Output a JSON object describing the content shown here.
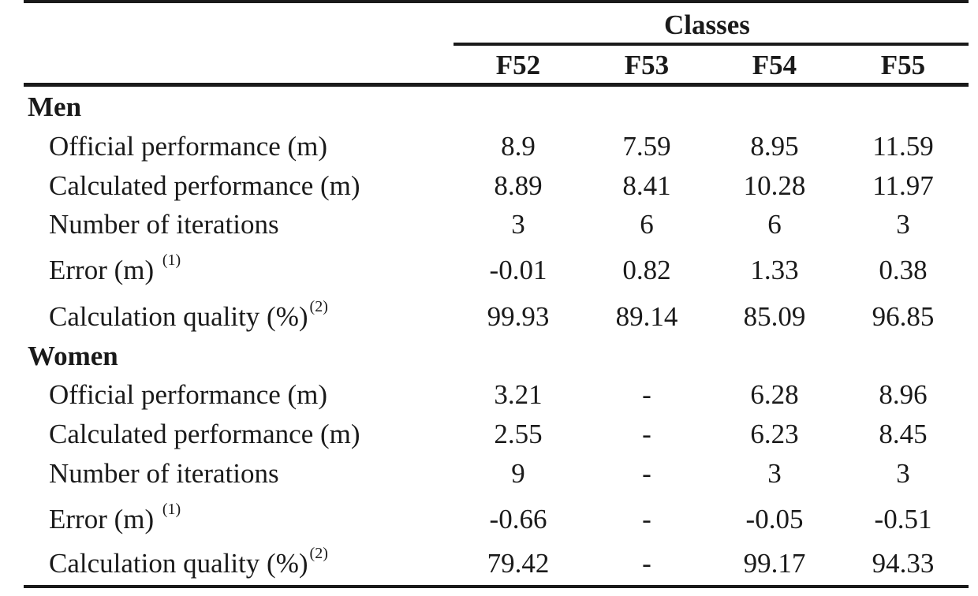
{
  "table": {
    "super_header": "Classes",
    "columns": [
      "F52",
      "F53",
      "F54",
      "F55"
    ],
    "groups": [
      {
        "name": "Men",
        "rows": [
          {
            "label": "Official performance (m)",
            "sup": "",
            "values": [
              "8.9",
              "7.59",
              "8.95",
              "11.59"
            ]
          },
          {
            "label": "Calculated performance (m)",
            "sup": "",
            "values": [
              "8.89",
              "8.41",
              "10.28",
              "11.97"
            ]
          },
          {
            "label": "Number of iterations",
            "sup": "",
            "values": [
              "3",
              "6",
              "6",
              "3"
            ]
          },
          {
            "label": "Error (m) ",
            "sup": "(1)",
            "values": [
              "-0.01",
              "0.82",
              "1.33",
              "0.38"
            ]
          },
          {
            "label": "Calculation quality (%)",
            "sup": "(2)",
            "values": [
              "99.93",
              "89.14",
              "85.09",
              "96.85"
            ]
          }
        ]
      },
      {
        "name": "Women",
        "rows": [
          {
            "label": "Official performance (m)",
            "sup": "",
            "values": [
              "3.21",
              "-",
              "6.28",
              "8.96"
            ]
          },
          {
            "label": "Calculated performance (m)",
            "sup": "",
            "values": [
              "2.55",
              "-",
              "6.23",
              "8.45"
            ]
          },
          {
            "label": "Number of iterations",
            "sup": "",
            "values": [
              "9",
              "-",
              "3",
              "3"
            ]
          },
          {
            "label": "Error (m) ",
            "sup": "(1)",
            "values": [
              "-0.66",
              "-",
              "-0.05",
              "-0.51"
            ]
          },
          {
            "label": "Calculation quality (%)",
            "sup": "(2)",
            "values": [
              "79.42",
              "-",
              "99.17",
              "94.33"
            ]
          }
        ]
      }
    ]
  }
}
